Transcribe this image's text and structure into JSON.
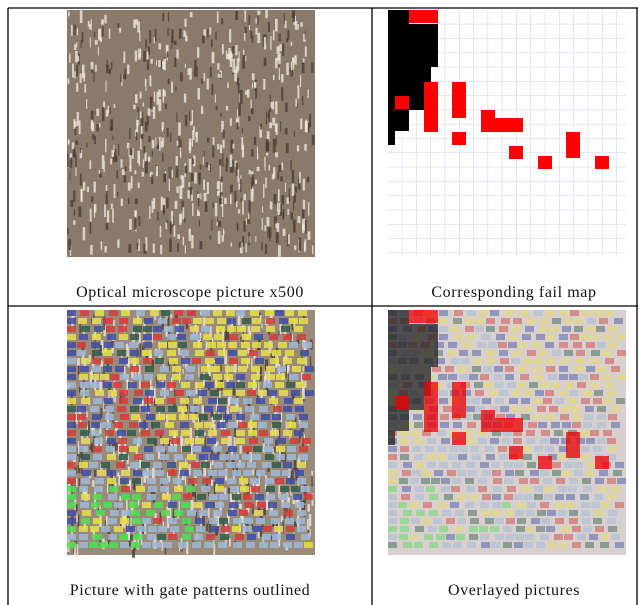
{
  "panels": [
    {
      "caption": "Optical microscope picture x500"
    },
    {
      "caption": "Corresponding fail map"
    },
    {
      "caption": "Picture with gate patterns outlined"
    },
    {
      "caption": "Overlayed pictures"
    }
  ]
}
